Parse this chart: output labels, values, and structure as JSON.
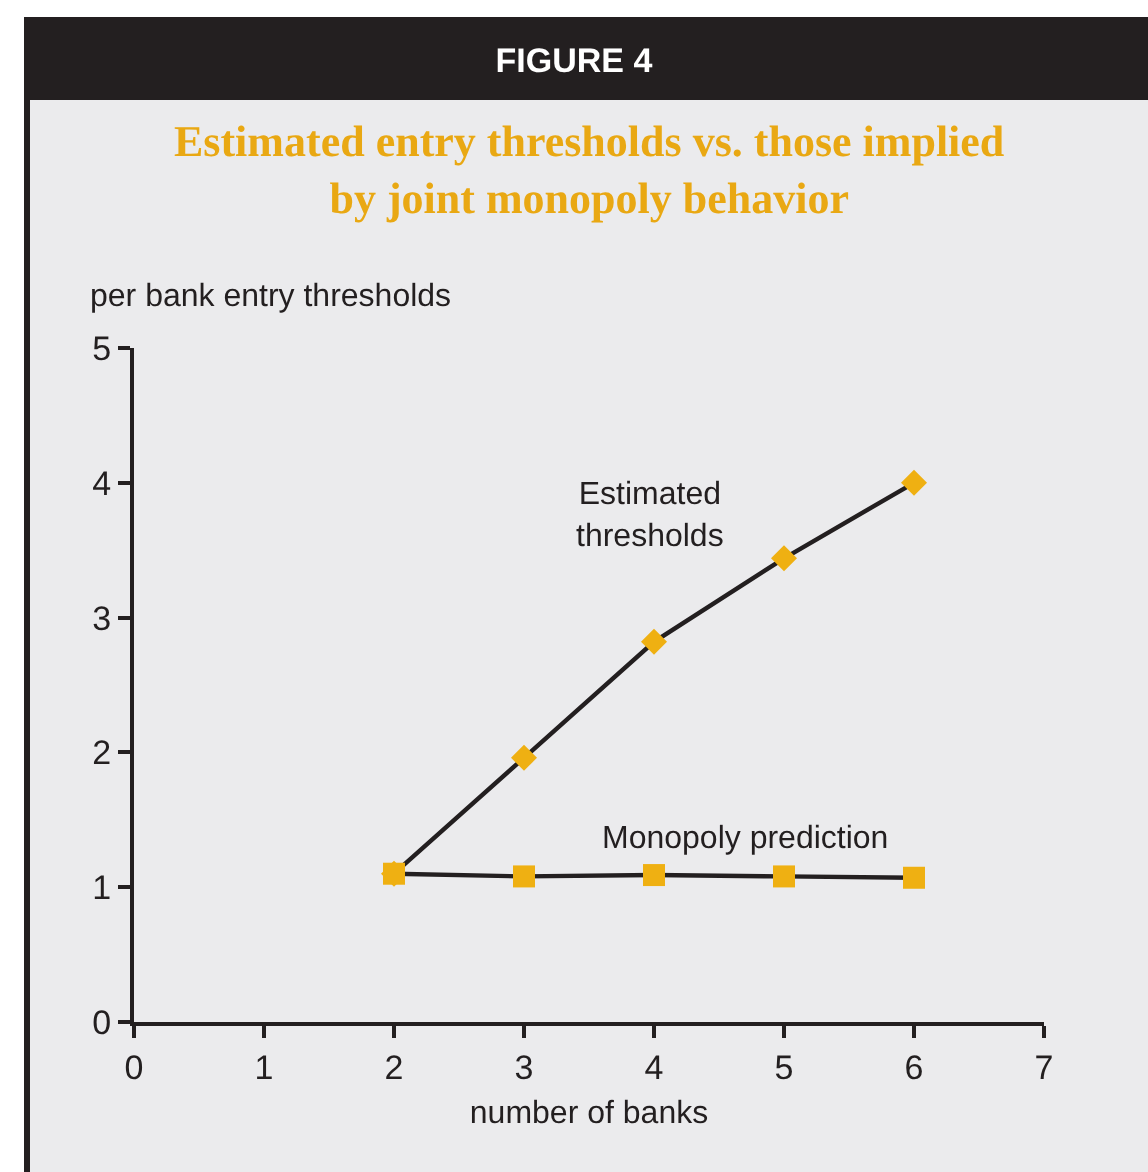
{
  "chart_data": {
    "type": "line",
    "title": "FIGURE 4",
    "subtitle": "Estimated entry thresholds vs. those implied\nby joint monopoly behavior",
    "xlabel": "number of banks",
    "ylabel": "per bank entry thresholds",
    "x": [
      2,
      3,
      4,
      5,
      6
    ],
    "series": [
      {
        "name": "Estimated\nthresholds",
        "color": "#efb012",
        "marker": "diamond",
        "values": [
          1.1,
          1.96,
          2.82,
          3.44,
          4.0
        ]
      },
      {
        "name": "Monopoly prediction",
        "color": "#efb012",
        "marker": "square",
        "values": [
          1.1,
          1.08,
          1.09,
          1.08,
          1.07
        ]
      }
    ],
    "xlim": [
      0,
      7
    ],
    "xticks": [
      0,
      1,
      2,
      3,
      4,
      5,
      6,
      7
    ],
    "ylim": [
      0,
      5
    ],
    "yticks": [
      0,
      1,
      2,
      3,
      4,
      5
    ],
    "grid": false,
    "legend": false,
    "line_style": "solid"
  }
}
